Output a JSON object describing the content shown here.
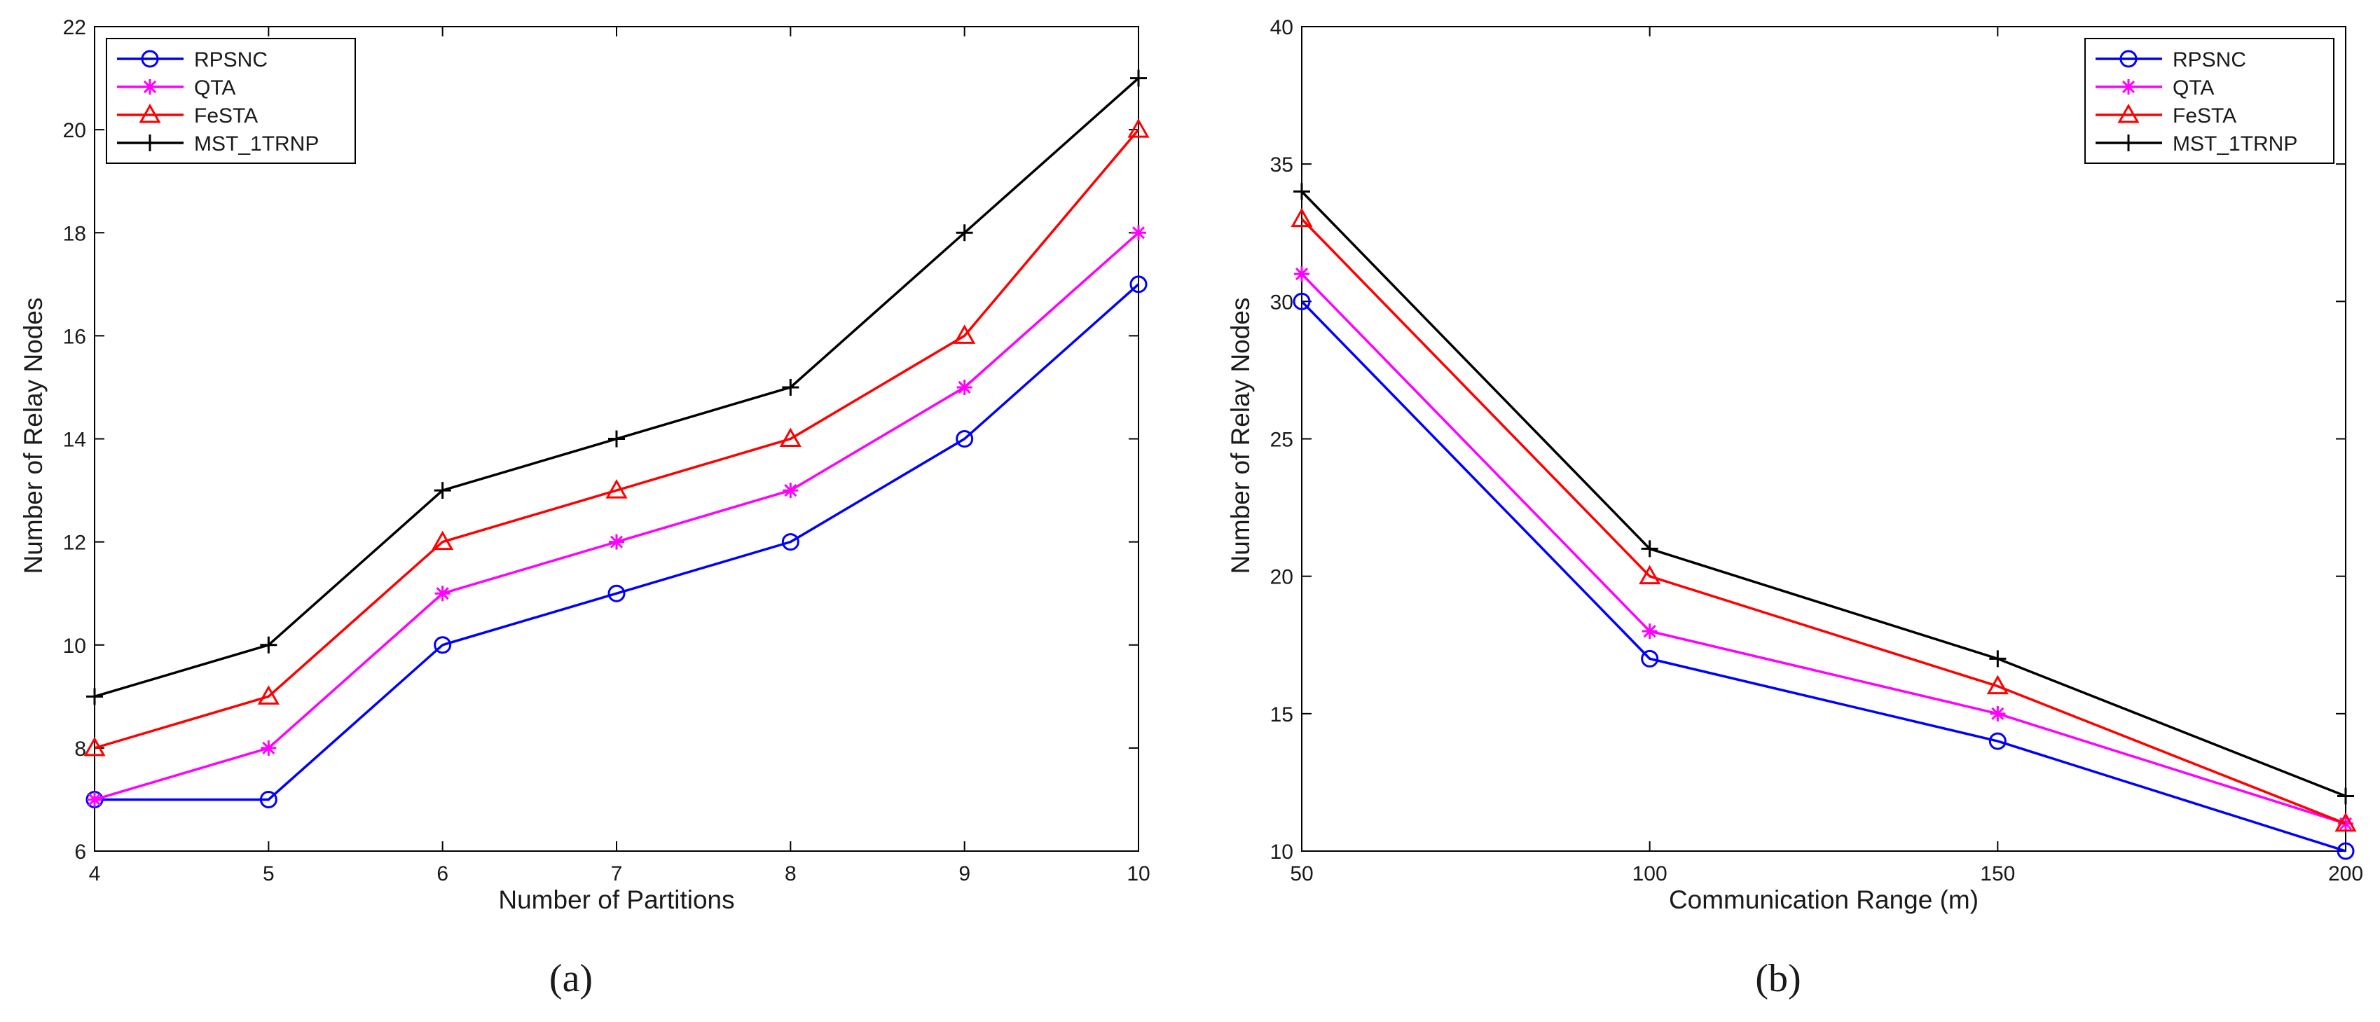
{
  "chart_data": [
    {
      "type": "line",
      "panel_label": "(a)",
      "title": "",
      "xlabel": "Number of Partitions",
      "ylabel": "Number of Relay Nodes",
      "xlim": [
        4,
        10
      ],
      "ylim": [
        6,
        22
      ],
      "x_ticks": [
        4,
        5,
        6,
        7,
        8,
        9,
        10
      ],
      "y_ticks": [
        6,
        8,
        10,
        12,
        14,
        16,
        18,
        20,
        22
      ],
      "x": [
        4,
        5,
        6,
        7,
        8,
        9,
        10
      ],
      "legend_position": "top-left",
      "grid": false,
      "series": [
        {
          "name": "RPSNC",
          "color": "#0000ff",
          "marker": "circle",
          "values": [
            7,
            7,
            10,
            11,
            12,
            14,
            17
          ]
        },
        {
          "name": "QTA",
          "color": "#ff00ff",
          "marker": "asterisk",
          "values": [
            7,
            8,
            11,
            12,
            13,
            15,
            18
          ]
        },
        {
          "name": "FeSTA",
          "color": "#ff0000",
          "marker": "triangle",
          "values": [
            8,
            9,
            12,
            13,
            14,
            16,
            20
          ]
        },
        {
          "name": "MST_1TRNP",
          "color": "#000000",
          "marker": "plus",
          "values": [
            9,
            10,
            13,
            14,
            15,
            18,
            21
          ]
        }
      ]
    },
    {
      "type": "line",
      "panel_label": "(b)",
      "title": "",
      "xlabel": "Communication Range (m)",
      "ylabel": "Number of Relay Nodes",
      "xlim": [
        50,
        200
      ],
      "ylim": [
        10,
        40
      ],
      "x_ticks": [
        50,
        100,
        150,
        200
      ],
      "y_ticks": [
        10,
        15,
        20,
        25,
        30,
        35,
        40
      ],
      "x": [
        50,
        100,
        150,
        200
      ],
      "legend_position": "top-right",
      "grid": false,
      "series": [
        {
          "name": "RPSNC",
          "color": "#0000ff",
          "marker": "circle",
          "values": [
            30,
            17,
            14,
            10
          ]
        },
        {
          "name": "QTA",
          "color": "#ff00ff",
          "marker": "asterisk",
          "values": [
            31,
            18,
            15,
            11
          ]
        },
        {
          "name": "FeSTA",
          "color": "#ff0000",
          "marker": "triangle",
          "values": [
            33,
            20,
            16,
            11
          ]
        },
        {
          "name": "MST_1TRNP",
          "color": "#000000",
          "marker": "plus",
          "values": [
            34,
            21,
            17,
            12
          ]
        }
      ]
    }
  ]
}
